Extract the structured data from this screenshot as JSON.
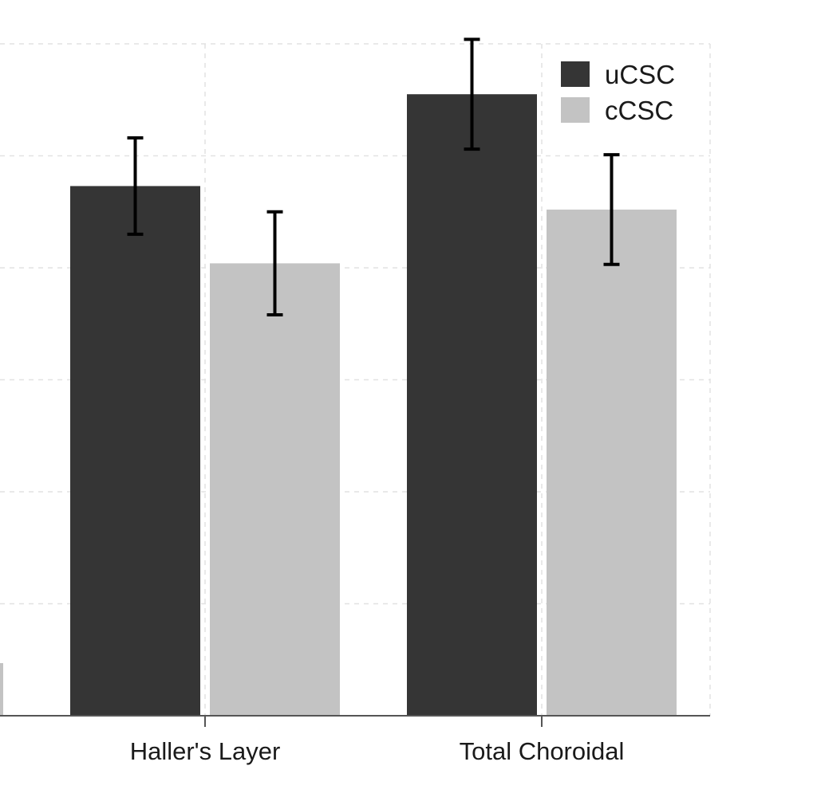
{
  "chart_data": {
    "type": "bar",
    "title": "",
    "xlabel": "",
    "ylabel": "",
    "categories": [
      "Haller's Layer",
      "Total Choroidal"
    ],
    "series": [
      {
        "name": "uCSC",
        "color": "#353535",
        "values": [
          47.3,
          55.5
        ],
        "error": [
          4.3,
          4.9
        ]
      },
      {
        "name": "cCSC",
        "color": "#c3c3c3",
        "values": [
          40.4,
          45.2
        ],
        "error": [
          4.6,
          4.9
        ]
      }
    ],
    "partial_bar_left": {
      "color": "#c3c3c3",
      "value": 4.7
    },
    "ylim": [
      0,
      60
    ],
    "grid": true,
    "legend_position": "top-right"
  }
}
